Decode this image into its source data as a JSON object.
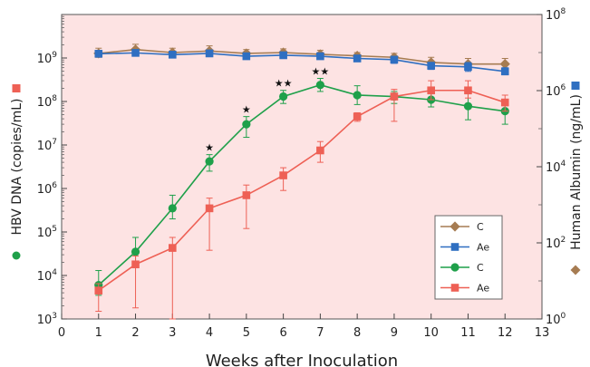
{
  "chart_data": {
    "type": "line",
    "xlabel": "Weeks after Inoculation",
    "ylabel_left": "HBV DNA (copies/mL)",
    "ylabel_right": "Human Albumin (ng/mL)",
    "xlim": [
      0,
      13
    ],
    "x_ticks": [
      "0",
      "1",
      "2",
      "3",
      "4",
      "5",
      "6",
      "7",
      "8",
      "9",
      "10",
      "11",
      "12",
      "13"
    ],
    "y_left": {
      "scale": "log",
      "lim": [
        1000,
        10000000000
      ],
      "tick_mantissa": "10",
      "tick_exponents": [
        "3",
        "4",
        "5",
        "6",
        "7",
        "8",
        "9"
      ]
    },
    "y_right": {
      "scale": "log",
      "lim": [
        1,
        100000000
      ],
      "tick_mantissa": "10",
      "tick_exponents": [
        "0",
        "2",
        "4",
        "6",
        "8"
      ]
    },
    "grid": false,
    "background_color": "#fde3e3",
    "legend": {
      "position": "lower-right",
      "entries": [
        {
          "label": "C",
          "color": "#a67c52",
          "marker": "diamond"
        },
        {
          "label": "Ae",
          "color": "#2f6fc1",
          "marker": "square"
        },
        {
          "label": "C",
          "color": "#1fa04a",
          "marker": "circle"
        },
        {
          "label": "Ae",
          "color": "#ee6055",
          "marker": "square"
        }
      ]
    },
    "series": [
      {
        "axis": "right",
        "color": "#a67c52",
        "marker": "diamond",
        "x": [
          1,
          2,
          3,
          4,
          5,
          6,
          7,
          8,
          9,
          10,
          11,
          12
        ],
        "y": [
          9500000,
          12000000,
          10000000,
          11000000,
          9500000,
          10000000,
          9000000,
          8200000,
          7500000,
          5500000,
          5000000,
          5000000
        ],
        "err_hi": [
          13000000,
          16500000,
          13000000,
          15000000,
          12000000,
          12500000,
          11500000,
          10000000,
          9500000,
          7500000,
          7000000,
          7000000
        ],
        "err_lo": [
          7500000,
          9500000,
          8000000,
          8500000,
          7500000,
          8000000,
          7000000,
          6500000,
          6000000,
          4200000,
          3800000,
          3800000
        ]
      },
      {
        "axis": "right",
        "color": "#2f6fc1",
        "marker": "square",
        "x": [
          1,
          2,
          3,
          4,
          5,
          6,
          7,
          8,
          9,
          10,
          11,
          12
        ],
        "y": [
          9300000,
          9800000,
          8800000,
          9500000,
          8000000,
          8500000,
          8000000,
          7000000,
          6500000,
          4500000,
          4200000,
          3200000
        ],
        "err_hi": [
          11000000,
          11500000,
          10500000,
          11500000,
          9500000,
          10000000,
          9500000,
          8500000,
          8000000,
          5500000,
          5500000,
          4000000
        ],
        "err_lo": [
          7800000,
          8300000,
          7300000,
          7800000,
          6700000,
          7000000,
          6700000,
          5800000,
          5200000,
          3600000,
          3200000,
          2600000
        ]
      },
      {
        "axis": "left",
        "color": "#1fa04a",
        "marker": "circle",
        "x": [
          1,
          2,
          3,
          4,
          5,
          6,
          7,
          8,
          9,
          10,
          11,
          12
        ],
        "y": [
          6000,
          35000,
          350000,
          4200000,
          30000000,
          130000000,
          240000000,
          140000000,
          130000000,
          110000000,
          78000000,
          60000000
        ],
        "err_hi": [
          13000,
          75000,
          700000,
          6000000,
          45000000,
          180000000,
          340000000,
          230000000,
          170000000,
          150000000,
          150000000,
          100000000
        ],
        "err_lo": [
          3500,
          20000,
          200000,
          2500000,
          15000000,
          90000000,
          170000000,
          85000000,
          90000000,
          75000000,
          38000000,
          30000000
        ],
        "annotations": {
          "4": "★",
          "5": "★",
          "6": "★★",
          "7": "★★"
        }
      },
      {
        "axis": "left",
        "color": "#ee6055",
        "marker": "square",
        "x": [
          1,
          2,
          3,
          4,
          5,
          6,
          7,
          8,
          9,
          10,
          11,
          12
        ],
        "y": [
          4500,
          18000,
          43000,
          350000,
          700000,
          2000000,
          7500000,
          45000000,
          130000000,
          180000000,
          180000000,
          95000000
        ],
        "err_hi": [
          6500,
          28000,
          75000,
          600000,
          1200000,
          3000000,
          12000000,
          55000000,
          190000000,
          300000000,
          300000000,
          140000000
        ],
        "err_lo": [
          1500,
          1800,
          1000,
          38000,
          120000,
          900000,
          4000000,
          35000000,
          35000000,
          110000000,
          120000000,
          60000000
        ]
      }
    ]
  }
}
